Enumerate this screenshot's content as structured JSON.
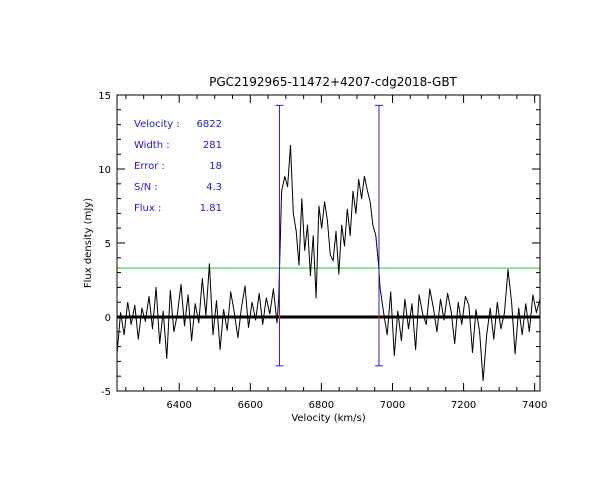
{
  "chart_data": {
    "type": "line",
    "title": "PGC2192965-11472+4207-cdg2018-GBT",
    "xlabel": "Velocity (km/s)",
    "ylabel": "Flux density (mJy)",
    "xlim": [
      6225,
      7415
    ],
    "ylim": [
      -5,
      15
    ],
    "x_ticks": [
      6400,
      6600,
      6800,
      7000,
      7200,
      7400
    ],
    "y_ticks": [
      -5,
      0,
      5,
      10,
      15
    ],
    "grid": false,
    "colors": {
      "spectrum": "#000000",
      "zero_line": "#000000",
      "threshold": "#22cc22",
      "markers": "#2222cc",
      "marker_tick": "#cc2222",
      "annotations": "#1a1ac8"
    },
    "annotations": [
      {
        "label": "Velocity :",
        "value": "6822"
      },
      {
        "label": "Width :",
        "value": "281"
      },
      {
        "label": "Error :",
        "value": "18"
      },
      {
        "label": "S/N :",
        "value": "4.3"
      },
      {
        "label": "Flux :",
        "value": "1.81"
      }
    ],
    "threshold_level": 3.3,
    "zero_level": 0,
    "markers": [
      {
        "x": 6682,
        "y_top": 14.3,
        "y_bottom": -3.3
      },
      {
        "x": 6962,
        "y_top": 14.3,
        "y_bottom": -3.3
      }
    ],
    "series": [
      {
        "x": [
          6225,
          6235,
          6245,
          6255,
          6265,
          6275,
          6285,
          6295,
          6305,
          6315,
          6325,
          6335,
          6345,
          6355,
          6365,
          6375,
          6385,
          6395,
          6405,
          6415,
          6425,
          6435,
          6445,
          6455,
          6465,
          6475,
          6485,
          6495,
          6505,
          6515,
          6525,
          6535,
          6545,
          6555,
          6565,
          6575,
          6585,
          6595,
          6605,
          6615,
          6625,
          6635,
          6645,
          6655,
          6665,
          6675,
          6680,
          6688,
          6697,
          6705,
          6713,
          6721,
          6729,
          6737,
          6745,
          6753,
          6761,
          6769,
          6777,
          6785,
          6793,
          6801,
          6809,
          6817,
          6825,
          6833,
          6841,
          6849,
          6857,
          6865,
          6873,
          6881,
          6889,
          6897,
          6905,
          6913,
          6921,
          6929,
          6937,
          6945,
          6953,
          6961,
          6965,
          6975,
          6985,
          6995,
          7005,
          7015,
          7025,
          7035,
          7045,
          7055,
          7065,
          7075,
          7085,
          7095,
          7105,
          7115,
          7125,
          7135,
          7145,
          7155,
          7165,
          7175,
          7185,
          7195,
          7205,
          7215,
          7225,
          7235,
          7245,
          7255,
          7265,
          7275,
          7285,
          7295,
          7305,
          7315,
          7325,
          7335,
          7345,
          7355,
          7365,
          7375,
          7385,
          7395,
          7405,
          7415
        ],
        "y": [
          -2.5,
          0.3,
          -1.2,
          1.0,
          -0.5,
          0.8,
          -1.5,
          0.6,
          -0.3,
          1.4,
          -0.8,
          2.0,
          -1.8,
          0.4,
          -2.8,
          1.8,
          -1.0,
          0.2,
          2.2,
          -0.6,
          1.5,
          -1.6,
          0.9,
          -0.4,
          2.6,
          0.1,
          3.6,
          -1.2,
          1.1,
          -2.2,
          0.5,
          -0.9,
          1.7,
          0.3,
          -1.4,
          0.6,
          2.1,
          -0.7,
          1.0,
          -0.2,
          1.6,
          -0.5,
          1.3,
          0.2,
          1.9,
          -0.4,
          1.2,
          8.5,
          9.5,
          8.8,
          11.6,
          7.0,
          5.8,
          3.5,
          8.0,
          4.5,
          6.2,
          2.8,
          5.5,
          1.3,
          7.5,
          6.0,
          7.8,
          6.5,
          4.2,
          3.8,
          5.8,
          2.9,
          6.2,
          4.8,
          7.3,
          5.5,
          8.5,
          7.0,
          9.3,
          8.0,
          9.5,
          8.6,
          7.8,
          6.2,
          5.5,
          3.5,
          2.0,
          0.3,
          -1.2,
          1.7,
          -2.6,
          0.4,
          -1.6,
          1.2,
          -0.8,
          0.9,
          -2.2,
          1.5,
          0.2,
          -0.5,
          1.9,
          0.6,
          -1.0,
          1.2,
          -0.2,
          1.6,
          0.4,
          -1.8,
          1.0,
          -0.5,
          1.4,
          0.8,
          -2.4,
          0.5,
          -1.0,
          -4.3,
          -1.2,
          0.6,
          -1.5,
          1.0,
          -0.8,
          0.3,
          3.2,
          1.0,
          -2.5,
          0.6,
          -1.2,
          0.9,
          -1.0,
          1.5,
          0.3,
          1.2
        ]
      }
    ]
  }
}
